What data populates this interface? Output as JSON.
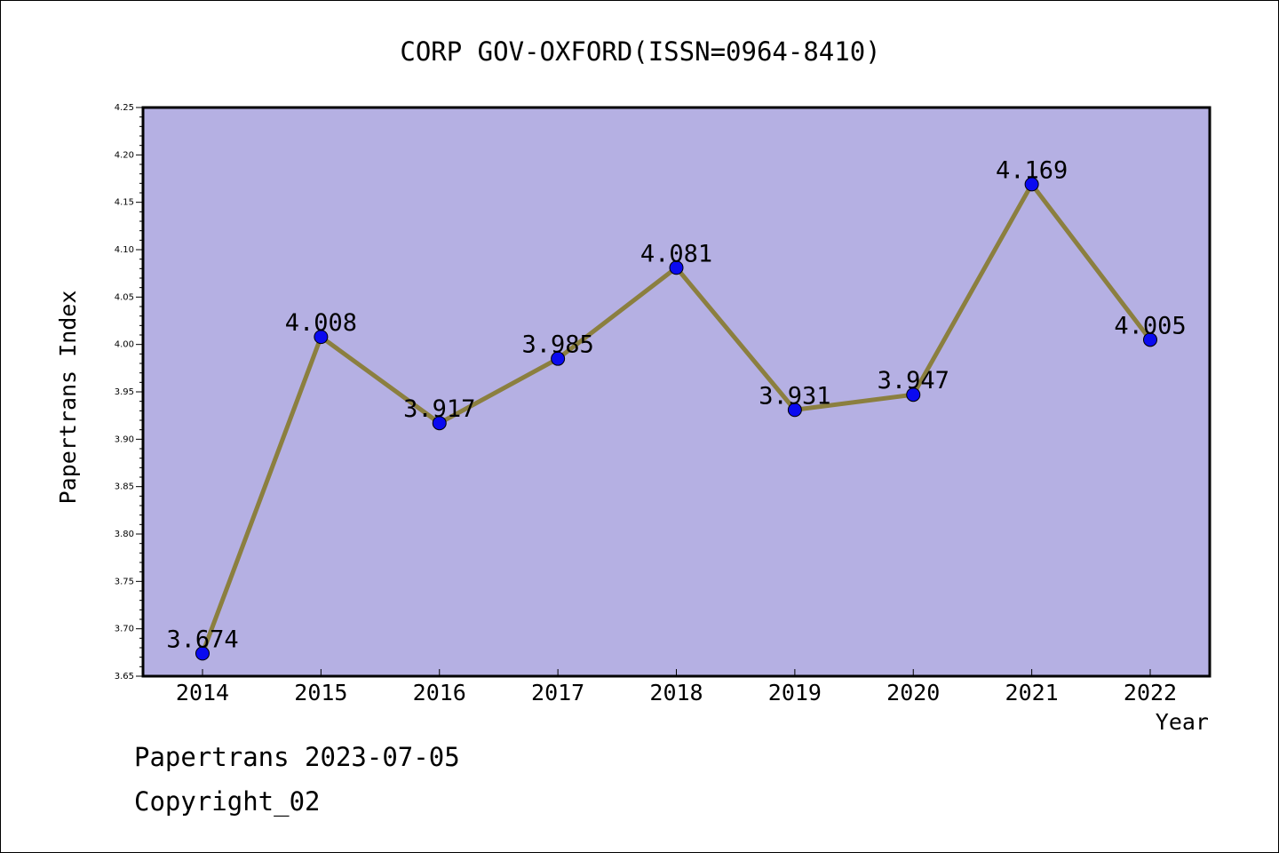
{
  "chart_data": {
    "type": "line",
    "title": "CORP GOV-OXFORD(ISSN=0964-8410)",
    "xlabel": "Year",
    "ylabel": "Papertrans Index",
    "categories": [
      "2014",
      "2015",
      "2016",
      "2017",
      "2018",
      "2019",
      "2020",
      "2021",
      "2022"
    ],
    "values": [
      3.674,
      4.008,
      3.917,
      3.985,
      4.081,
      3.931,
      3.947,
      4.169,
      4.005
    ],
    "data_labels": [
      "3.674",
      "4.008",
      "3.917",
      "3.985",
      "4.081",
      "3.931",
      "3.947",
      "4.169",
      "4.005"
    ],
    "ylim": [
      3.65,
      4.25
    ],
    "yticks": [
      "3.65",
      "3.70",
      "3.75",
      "3.80",
      "3.85",
      "3.90",
      "3.95",
      "4.00",
      "4.05",
      "4.10",
      "4.15",
      "4.20",
      "4.25"
    ],
    "grid": false,
    "legend": "none",
    "colors": {
      "plot_background": "#b5b0e3",
      "line": "#8b7f3f",
      "marker": "#0a0af0"
    }
  },
  "footer": {
    "line1": "Papertrans 2023-07-05",
    "line2": "Copyright_02"
  }
}
